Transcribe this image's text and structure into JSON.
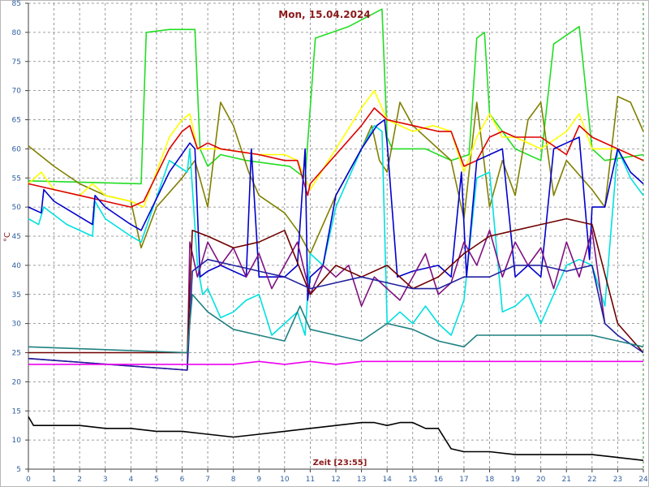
{
  "chart_data": {
    "type": "line",
    "title": "Mon, 15.04.2024",
    "xlabel": "Zeit [23:55]",
    "ylabel": "°C",
    "xlim": [
      0,
      24
    ],
    "ylim": [
      5,
      85
    ],
    "xticks": [
      0,
      1,
      2,
      3,
      4,
      5,
      6,
      7,
      8,
      9,
      10,
      11,
      12,
      13,
      14,
      15,
      16,
      17,
      18,
      19,
      20,
      21,
      22,
      23,
      24
    ],
    "yticks": [
      5,
      10,
      15,
      20,
      25,
      30,
      35,
      40,
      45,
      50,
      55,
      60,
      65,
      70,
      75,
      80,
      85
    ],
    "grid": true,
    "series": [
      {
        "color": "#22dd22",
        "x": [
          0,
          4.4,
          4.6,
          5.5,
          6.5,
          6.7,
          7,
          7.5,
          8.5,
          10.2,
          10.8,
          11.2,
          12.5,
          13.8,
          14,
          14.2,
          15.5,
          16.5,
          17.2,
          17.5,
          17.8,
          18,
          19,
          20,
          20.5,
          21.5,
          22,
          22.5,
          24
        ],
        "values": [
          54.5,
          54,
          80,
          80.5,
          80.5,
          60,
          57,
          59,
          58,
          57,
          55,
          79,
          81,
          84,
          62,
          60,
          60,
          58,
          59,
          79,
          80,
          66,
          60,
          58,
          78,
          81,
          60,
          58,
          59
        ]
      },
      {
        "color": "#808000",
        "x": [
          0,
          1,
          2,
          3,
          4,
          4.4,
          5,
          6,
          6.5,
          7,
          7.5,
          8,
          8.6,
          9,
          10,
          10.5,
          11,
          12,
          13,
          13.4,
          13.7,
          14,
          14.5,
          15,
          16,
          16.5,
          17,
          17.5,
          18,
          18.5,
          19,
          19.5,
          20,
          20.5,
          21,
          22,
          22.5,
          23,
          23.5,
          24
        ],
        "values": [
          60.5,
          57,
          54,
          52,
          51,
          43,
          50,
          55,
          58,
          50,
          68,
          64,
          56,
          52,
          49,
          46,
          42,
          52,
          60,
          64,
          58,
          56,
          68,
          64,
          60,
          58,
          48,
          68,
          50,
          58,
          52,
          65,
          68,
          52,
          58,
          53,
          50,
          69,
          68,
          63
        ]
      },
      {
        "color": "#ffff00",
        "x": [
          0,
          0.5,
          1,
          2,
          2.5,
          3,
          4,
          4.5,
          5.5,
          6,
          6.3,
          6.6,
          7,
          7.5,
          9,
          10,
          10.5,
          11,
          12,
          13,
          13.5,
          14,
          15,
          15.8,
          16.5,
          17,
          17.5,
          18,
          18.5,
          19,
          20,
          21,
          21.5,
          22,
          23,
          24
        ],
        "values": [
          54,
          56,
          53,
          52,
          54,
          52,
          51,
          50,
          62,
          65,
          66,
          60,
          60,
          60,
          59,
          59,
          58,
          53,
          60,
          67,
          70,
          65,
          63,
          64,
          63,
          56,
          62,
          66,
          62,
          62,
          60,
          63,
          66,
          60,
          60,
          58
        ]
      },
      {
        "color": "#dd0000",
        "x": [
          0,
          1,
          2,
          3,
          4,
          4.5,
          5.5,
          6,
          6.3,
          6.6,
          7,
          7.5,
          9,
          10,
          10.5,
          10.9,
          11,
          12,
          13,
          13.5,
          14,
          15,
          16,
          16.5,
          17,
          17.5,
          18,
          18.5,
          19,
          20,
          21,
          21.5,
          22,
          23,
          24
        ],
        "values": [
          54,
          53,
          52,
          51,
          50,
          51,
          60,
          63,
          64,
          60,
          61,
          60,
          59,
          58,
          58,
          52,
          54,
          59,
          64,
          67,
          65,
          64,
          63,
          63,
          57,
          58,
          62,
          63,
          62,
          62,
          59,
          64,
          62,
          60,
          58
        ]
      },
      {
        "color": "#00e0e0",
        "x": [
          0,
          0.4,
          0.6,
          1.5,
          2.5,
          2.6,
          3,
          4,
          4.4,
          5.5,
          6.2,
          6.3,
          6.6,
          6.8,
          7,
          7.5,
          8,
          8.5,
          9,
          9.5,
          10,
          10.5,
          10.8,
          11,
          11.5,
          12,
          13,
          13.5,
          13.8,
          14,
          14.5,
          15,
          15.5,
          16,
          16.5,
          17,
          17.5,
          18,
          18.5,
          19,
          19.5,
          20,
          20.5,
          21,
          21.5,
          22,
          22.5,
          23,
          23.5,
          24
        ],
        "values": [
          48,
          47,
          50,
          47,
          45,
          51,
          48,
          45,
          44,
          58,
          56,
          60,
          40,
          35,
          36,
          31,
          32,
          34,
          35,
          28,
          30,
          32,
          28,
          42,
          40,
          50,
          60,
          64,
          63,
          30,
          32,
          30,
          33,
          30,
          28,
          34,
          55,
          56,
          32,
          33,
          35,
          30,
          35,
          40,
          41,
          40,
          33,
          60,
          55,
          52
        ]
      },
      {
        "color": "#0000cc",
        "x": [
          0,
          0.5,
          0.6,
          1,
          2.5,
          2.6,
          3,
          4,
          4.4,
          5.5,
          6.3,
          6.5,
          6.7,
          7,
          7.5,
          8.5,
          8.7,
          9,
          10,
          10.5,
          10.8,
          10.9,
          11,
          11.5,
          12,
          13,
          13.6,
          13.9,
          14,
          14.4,
          15,
          16,
          16.5,
          16.9,
          17.1,
          17.5,
          18,
          18.5,
          19,
          19.5,
          20,
          20.5,
          21,
          21.5,
          21.9,
          22,
          22.5,
          23,
          23.5,
          24
        ],
        "values": [
          50,
          49,
          53,
          51,
          47,
          52,
          50,
          47,
          46,
          56,
          61,
          60,
          38,
          39,
          40,
          38,
          60,
          38,
          38,
          40,
          60,
          34,
          38,
          40,
          52,
          60,
          64,
          65,
          61,
          38,
          39,
          40,
          38,
          56,
          38,
          58,
          59,
          60,
          38,
          40,
          38,
          60,
          61,
          62,
          41,
          50,
          50,
          60,
          56,
          54
        ]
      },
      {
        "color": "#801080",
        "x": [
          0,
          6.2,
          6.3,
          6.6,
          7,
          7.5,
          8,
          8.5,
          9,
          9.5,
          10,
          10.5,
          11,
          11.5,
          12,
          12.5,
          13,
          13.5,
          14,
          14.5,
          15,
          15.5,
          16,
          16.5,
          17,
          17.5,
          18,
          18.5,
          19,
          19.5,
          20,
          20.5,
          21,
          21.5,
          22,
          22.5
        ],
        "values": [
          24,
          22,
          44,
          38,
          44,
          40,
          43,
          38,
          42,
          36,
          40,
          44,
          35,
          40,
          38,
          40,
          33,
          38,
          36,
          34,
          38,
          42,
          35,
          37,
          44,
          40,
          46,
          38,
          44,
          40,
          43,
          36,
          44,
          38,
          46,
          30
        ]
      },
      {
        "color": "#700000",
        "x": [
          0,
          6.2,
          6.4,
          7,
          8,
          9,
          10,
          11,
          12,
          13,
          14,
          15,
          16,
          17,
          18,
          19,
          20,
          21,
          22,
          23,
          24
        ],
        "values": [
          25,
          25,
          46,
          45,
          43,
          44,
          46,
          35,
          40,
          38,
          40,
          36,
          38,
          42,
          45,
          46,
          47,
          48,
          47,
          30,
          25
        ]
      },
      {
        "color": "#2020a0",
        "x": [
          0,
          6.2,
          6.4,
          7,
          8,
          9,
          10,
          11,
          12,
          13,
          14,
          15,
          16,
          17,
          18,
          19,
          20,
          21,
          22,
          22.5,
          23,
          24
        ],
        "values": [
          24,
          22,
          39,
          41,
          40,
          39,
          38,
          36,
          37,
          38,
          37,
          36,
          36,
          38,
          38,
          40,
          40,
          39,
          40,
          30,
          28,
          25
        ]
      },
      {
        "color": "#208080",
        "x": [
          0,
          6.2,
          6.4,
          7,
          8,
          9,
          10,
          10.6,
          11,
          12,
          13,
          14,
          15,
          16,
          17,
          17.5,
          18,
          19,
          20,
          21,
          22,
          23,
          24
        ],
        "values": [
          26,
          25,
          35,
          32,
          29,
          28,
          27,
          33,
          29,
          28,
          27,
          30,
          29,
          27,
          26,
          28,
          28,
          28,
          28,
          28,
          28,
          27,
          26
        ]
      },
      {
        "color": "#ee00ee",
        "x": [
          0,
          1,
          5,
          8,
          9,
          10,
          11,
          12,
          13,
          14,
          16,
          18,
          20,
          22,
          23,
          24
        ],
        "values": [
          23,
          23,
          23,
          23,
          23.5,
          23,
          23.5,
          23,
          23.5,
          23.5,
          23.5,
          23.5,
          23.5,
          23.5,
          23.5,
          23.5
        ]
      },
      {
        "color": "#000000",
        "x": [
          0,
          0.2,
          1,
          2,
          3,
          4,
          5,
          6,
          7,
          8,
          9,
          10,
          11,
          12,
          13,
          13.5,
          14,
          14.5,
          15,
          15.5,
          16,
          16.5,
          17,
          18,
          19,
          20,
          21,
          22,
          23,
          24
        ],
        "values": [
          14,
          12.5,
          12.5,
          12.5,
          12,
          12,
          11.5,
          11.5,
          11,
          10.5,
          11,
          11.5,
          12,
          12.5,
          13,
          13,
          12.5,
          13,
          13,
          12,
          12,
          8.5,
          8,
          8,
          7.5,
          7.5,
          7.5,
          7.5,
          7,
          6.5
        ]
      }
    ]
  }
}
